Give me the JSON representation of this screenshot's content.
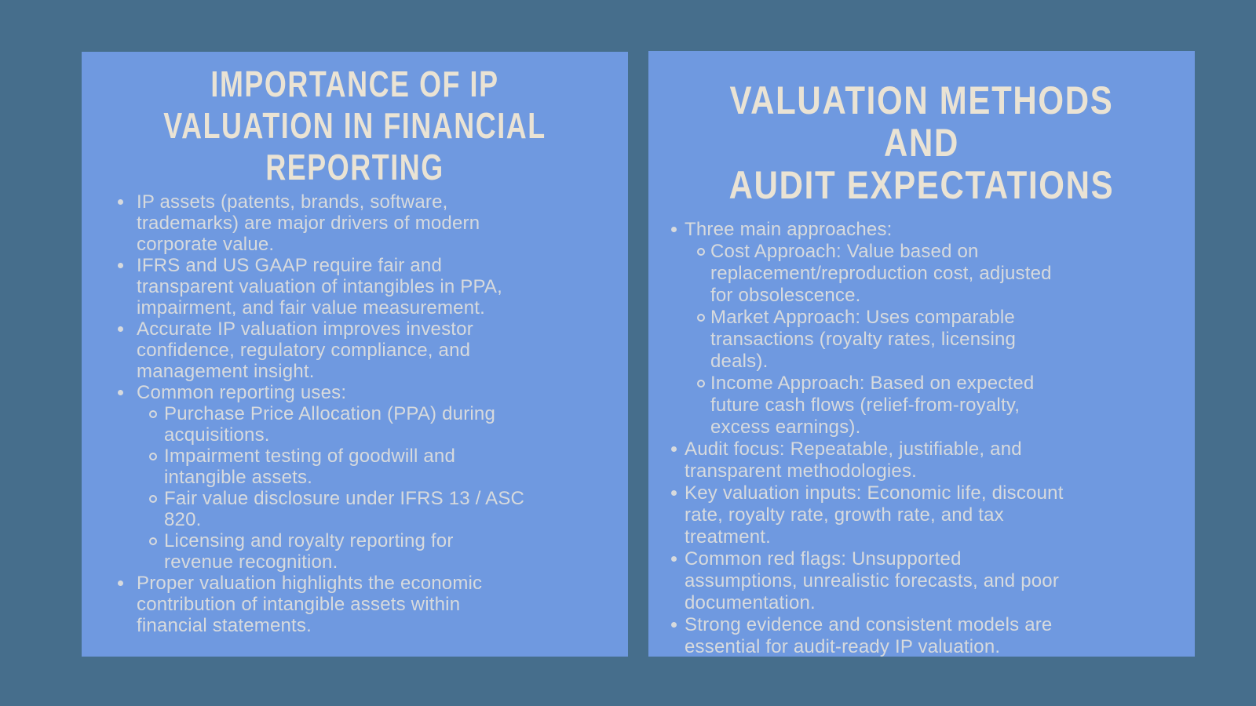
{
  "slide": {
    "background_color": "#466e8c",
    "panel_color": "#6f99e0",
    "title_color": "#eae3d4",
    "body_text_color": "#d7dadd"
  },
  "icons": {
    "bullet": "filled-dot",
    "sub_bullet": "open-circle"
  },
  "left_panel": {
    "title_lines": [
      "IMPORTANCE OF IP",
      "VALUATION IN FINANCIAL",
      "REPORTING"
    ],
    "bullets": [
      {
        "lines": [
          "IP assets (patents, brands, software,",
          "trademarks) are major drivers of modern",
          "corporate value."
        ]
      },
      {
        "lines": [
          "IFRS and US GAAP require fair and",
          "transparent valuation of intangibles in PPA,",
          "impairment, and fair value measurement."
        ]
      },
      {
        "lines": [
          "Accurate IP valuation improves investor",
          "confidence, regulatory compliance, and",
          "management insight."
        ]
      },
      {
        "lines": [
          "Common reporting uses:"
        ],
        "sub": [
          {
            "lines": [
              "Purchase Price Allocation (PPA) during",
              "acquisitions."
            ]
          },
          {
            "lines": [
              "Impairment testing of goodwill and",
              "intangible assets."
            ]
          },
          {
            "lines": [
              "Fair value disclosure under IFRS 13 / ASC",
              "820."
            ]
          },
          {
            "lines": [
              "Licensing and royalty reporting for",
              "revenue recognition."
            ]
          }
        ]
      },
      {
        "lines": [
          "Proper valuation highlights the economic",
          "contribution of intangible assets within",
          "financial statements."
        ]
      }
    ]
  },
  "right_panel": {
    "title_lines": [
      "VALUATION METHODS AND",
      "AUDIT EXPECTATIONS"
    ],
    "bullets": [
      {
        "lines": [
          "Three main approaches:"
        ],
        "sub": [
          {
            "lines": [
              "Cost Approach: Value based on",
              "replacement/reproduction cost, adjusted",
              "for obsolescence."
            ]
          },
          {
            "lines": [
              "Market Approach: Uses comparable",
              "transactions (royalty rates, licensing",
              "deals)."
            ]
          },
          {
            "lines": [
              "Income Approach: Based on expected",
              "future cash flows (relief-from-royalty,",
              "excess earnings)."
            ]
          }
        ]
      },
      {
        "lines": [
          "Audit focus: Repeatable, justifiable, and",
          "transparent methodologies."
        ]
      },
      {
        "lines": [
          "Key valuation inputs: Economic life, discount",
          "rate, royalty rate, growth rate, and tax",
          "treatment."
        ]
      },
      {
        "lines": [
          "Common red flags: Unsupported",
          "assumptions, unrealistic forecasts, and poor",
          "documentation."
        ]
      },
      {
        "lines": [
          "Strong evidence and consistent models are",
          "essential for audit-ready IP valuation."
        ]
      }
    ]
  }
}
